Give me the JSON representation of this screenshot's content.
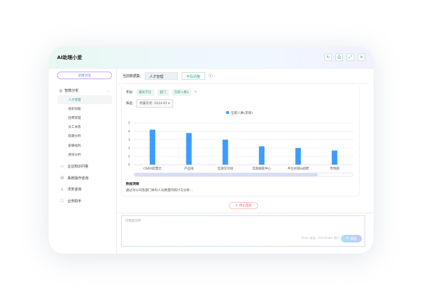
{
  "window": {
    "title": "AI助理小爱",
    "icons": [
      "history-icon",
      "print-icon",
      "expand-icon",
      "close-icon"
    ]
  },
  "sidebar": {
    "new_chat": "新建对话",
    "group": {
      "label": "智数分析",
      "items": [
        "人才管理",
        "组织效能",
        "招聘管理",
        "员工关系",
        "假期分析",
        "薪酬福利",
        "绩效分析"
      ],
      "active": "人才管理"
    },
    "nav": [
      {
        "label": "企业知识问答",
        "icon": "book-icon"
      },
      {
        "label": "系统操作咨询",
        "icon": "document-icon"
      },
      {
        "label": "法务咨询",
        "icon": "user-icon"
      },
      {
        "label": "业务助手",
        "icon": "assistant-icon"
      }
    ]
  },
  "toolbar": {
    "dataset_label": "当前数据集:",
    "dataset_value": "人才管理",
    "field_adjust": "字段调整"
  },
  "fields": {
    "label": "字段:",
    "tags": [
      "最高学历",
      "部门",
      "在职人数1"
    ]
  },
  "filter": {
    "label": "筛选:",
    "value": "所属年月: 2024-05"
  },
  "chart_data": {
    "type": "bar",
    "categories": [
      "CNRA智慧云",
      "产品线",
      "实施交付组",
      "实施赋能中心",
      "平台对接&招聘",
      "市场部"
    ],
    "series": [
      {
        "name": "在职人数(求和)",
        "values": [
          4.2,
          3.8,
          3.0,
          2.2,
          2.0,
          1.7
        ]
      }
    ],
    "ylim": [
      0,
      5
    ],
    "yticks": [
      0,
      1,
      2,
      3,
      4,
      5
    ],
    "grid": true,
    "legend": "top",
    "color": "#3d9cff"
  },
  "insight": {
    "title": "数据洞察",
    "text": "通过对公司各部门本科人员数量的统计与分析..."
  },
  "stop_label": "停止回答",
  "input": {
    "placeholder": "向我提问吧",
    "hint": "Enter 发送，Ctrl+Enter 换行",
    "send": "发送"
  }
}
